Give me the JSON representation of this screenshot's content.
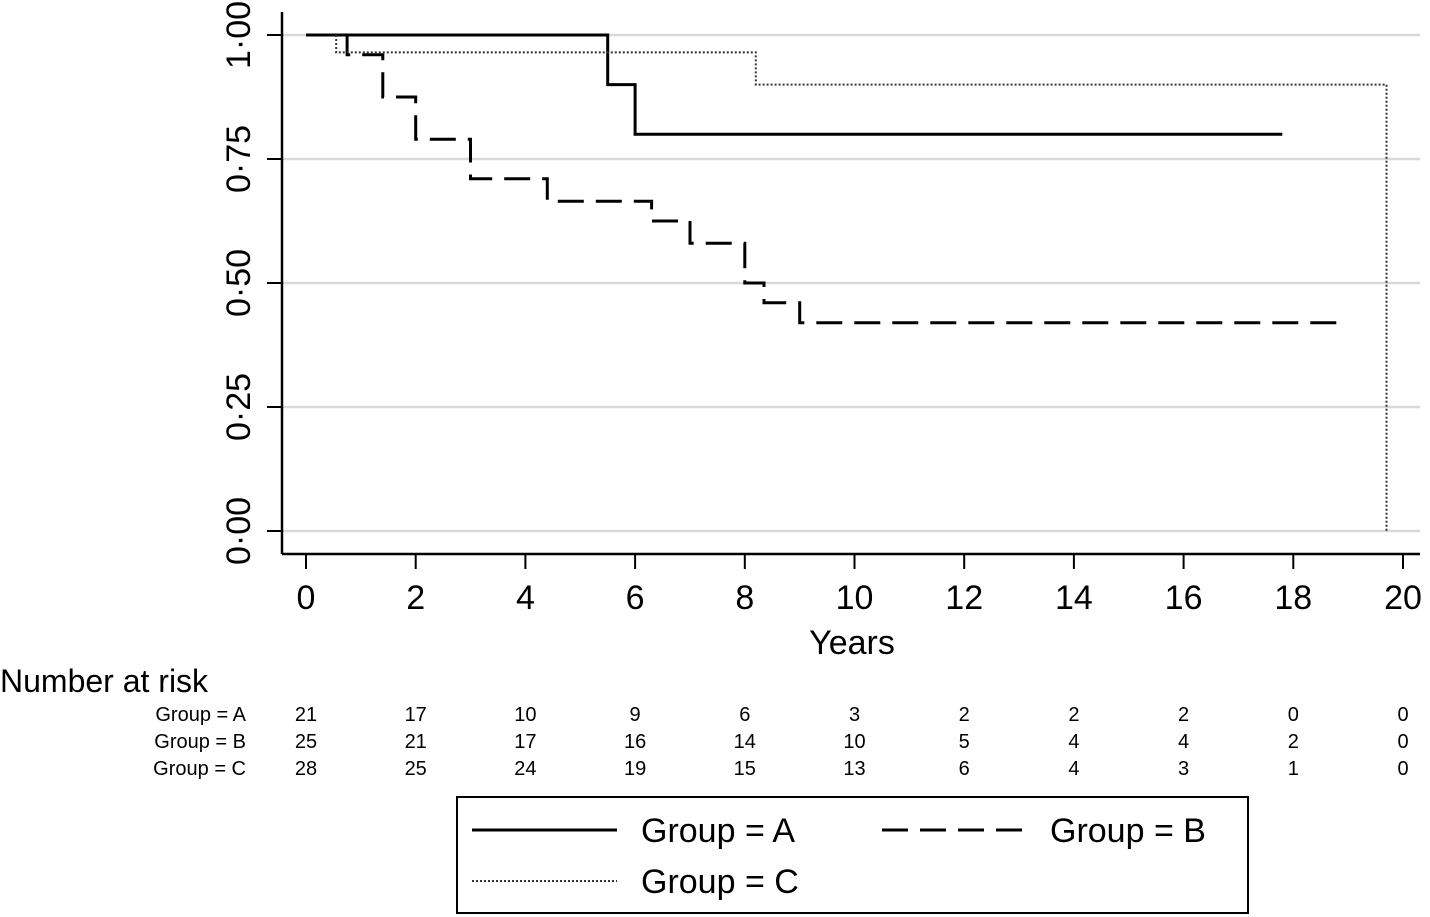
{
  "chart_data": {
    "type": "line",
    "title": "",
    "xlabel": "Years",
    "ylabel": "",
    "xlim": [
      0,
      20
    ],
    "ylim": [
      0,
      1
    ],
    "x_ticks": [
      0,
      2,
      4,
      6,
      8,
      10,
      12,
      14,
      16,
      18,
      20
    ],
    "x_tick_labels": [
      "0",
      "2",
      "4",
      "6",
      "8",
      "10",
      "12",
      "14",
      "16",
      "18",
      "20"
    ],
    "y_ticks": [
      0,
      0.25,
      0.5,
      0.75,
      1
    ],
    "y_tick_labels": [
      "0·00",
      "0·25",
      "0·50",
      "0·75",
      "1·00"
    ],
    "grid": "horizontal",
    "legend_position": "bottom",
    "series": [
      {
        "name": "Group = A",
        "style": "solid",
        "points": [
          [
            0,
            1
          ],
          [
            5.5,
            1
          ],
          [
            5.5,
            0.9
          ],
          [
            6,
            0.9
          ],
          [
            6,
            0.8
          ],
          [
            17.8,
            0.8
          ]
        ]
      },
      {
        "name": "Group = B",
        "style": "dashed",
        "points": [
          [
            0,
            1
          ],
          [
            0.75,
            1
          ],
          [
            0.75,
            0.96
          ],
          [
            1.4,
            0.96
          ],
          [
            1.4,
            0.875
          ],
          [
            2,
            0.875
          ],
          [
            2,
            0.79
          ],
          [
            3,
            0.79
          ],
          [
            3,
            0.71
          ],
          [
            4.4,
            0.71
          ],
          [
            4.4,
            0.665
          ],
          [
            6.3,
            0.665
          ],
          [
            6.3,
            0.625
          ],
          [
            7,
            0.625
          ],
          [
            7,
            0.58
          ],
          [
            8,
            0.58
          ],
          [
            8,
            0.5
          ],
          [
            8.35,
            0.5
          ],
          [
            8.35,
            0.46
          ],
          [
            9,
            0.46
          ],
          [
            9,
            0.42
          ],
          [
            19,
            0.42
          ]
        ]
      },
      {
        "name": "Group = C",
        "style": "dotted",
        "points": [
          [
            0.55,
            1
          ],
          [
            0.55,
            0.965
          ],
          [
            8.2,
            0.965
          ],
          [
            8.2,
            0.9
          ],
          [
            19.7,
            0.9
          ],
          [
            19.7,
            0
          ]
        ]
      }
    ],
    "risk_table": {
      "title": "Number at risk",
      "times": [
        0,
        2,
        4,
        6,
        8,
        10,
        12,
        14,
        16,
        18,
        20
      ],
      "rows": [
        {
          "label": "Group = A",
          "values": [
            "21",
            "17",
            "10",
            "9",
            "6",
            "3",
            "2",
            "2",
            "2",
            "0",
            "0"
          ]
        },
        {
          "label": "Group = B",
          "values": [
            "25",
            "21",
            "17",
            "16",
            "14",
            "10",
            "5",
            "4",
            "4",
            "2",
            "0"
          ]
        },
        {
          "label": "Group = C",
          "values": [
            "28",
            "25",
            "24",
            "19",
            "15",
            "13",
            "6",
            "4",
            "3",
            "1",
            "0"
          ]
        }
      ]
    }
  }
}
